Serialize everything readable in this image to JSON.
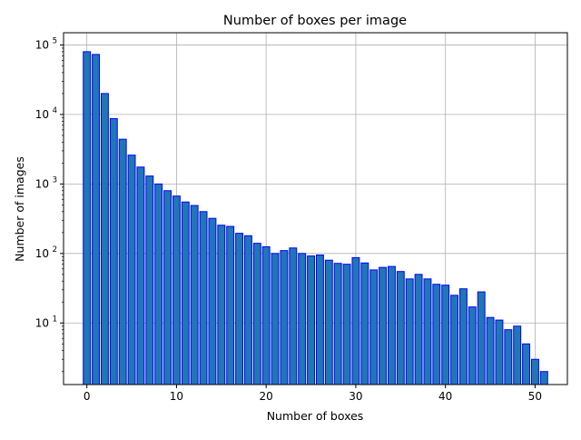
{
  "chart_data": {
    "type": "bar",
    "title": "Number of boxes per image",
    "xlabel": "Number of boxes",
    "ylabel": "Number of images",
    "yscale": "log",
    "xlim": [
      -2.6,
      53.6
    ],
    "ylim": [
      1.3,
      150000
    ],
    "grid": true,
    "x_ticks": [
      0,
      10,
      20,
      30,
      40,
      50
    ],
    "y_ticks": [
      {
        "value": 10,
        "base": "10",
        "exp": "1"
      },
      {
        "value": 100,
        "base": "10",
        "exp": "2"
      },
      {
        "value": 1000,
        "base": "10",
        "exp": "3"
      },
      {
        "value": 10000,
        "base": "10",
        "exp": "4"
      },
      {
        "value": 100000,
        "base": "10",
        "exp": "5"
      }
    ],
    "bar_color": "#1f77b4",
    "edge_color": "#0000ff",
    "categories": [
      0,
      1,
      2,
      3,
      4,
      5,
      6,
      7,
      8,
      9,
      10,
      11,
      12,
      13,
      14,
      15,
      16,
      17,
      18,
      19,
      20,
      21,
      22,
      23,
      24,
      25,
      26,
      27,
      28,
      29,
      30,
      31,
      32,
      33,
      34,
      35,
      36,
      37,
      38,
      39,
      40,
      41,
      42,
      43,
      44,
      45,
      46,
      47,
      48,
      49,
      50,
      51
    ],
    "values": [
      80000,
      73000,
      20000,
      8700,
      4400,
      2600,
      1750,
      1300,
      1000,
      800,
      670,
      550,
      490,
      400,
      320,
      255,
      245,
      195,
      180,
      140,
      125,
      100,
      110,
      120,
      100,
      92,
      95,
      80,
      72,
      70,
      87,
      73,
      58,
      63,
      65,
      55,
      43,
      50,
      43,
      36,
      35,
      25,
      31,
      17,
      28,
      12,
      11,
      8,
      9,
      5,
      3,
      2
    ]
  }
}
